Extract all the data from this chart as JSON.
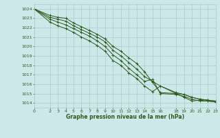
{
  "title": "Graphe pression niveau de la mer (hPa)",
  "bg_color": "#cce8e8",
  "grid_color": "#aacccc",
  "line_color": "#2d5a1b",
  "xlim": [
    0,
    23
  ],
  "ylim": [
    1013.5,
    1024.5
  ],
  "xtick_labels": [
    "0",
    "2",
    "3",
    "4",
    "5",
    "6",
    "7",
    "8",
    "9",
    "10",
    "11",
    "12",
    "13",
    "14",
    "15",
    "16",
    "18",
    "19",
    "20",
    "21",
    "22",
    "23"
  ],
  "xtick_pos": [
    0,
    2,
    3,
    4,
    5,
    6,
    7,
    8,
    9,
    10,
    11,
    12,
    13,
    14,
    15,
    16,
    18,
    19,
    20,
    21,
    22,
    23
  ],
  "yticks": [
    1014,
    1015,
    1016,
    1017,
    1018,
    1019,
    1020,
    1021,
    1022,
    1023,
    1024
  ],
  "series": [
    {
      "x": [
        0,
        2,
        3,
        4,
        5,
        6,
        7,
        8,
        9,
        10,
        11,
        12,
        13,
        14,
        15,
        16,
        18,
        19,
        20,
        21,
        22,
        23
      ],
      "y": [
        1024.0,
        1023.3,
        1023.1,
        1023.0,
        1022.5,
        1022.1,
        1021.7,
        1021.3,
        1020.8,
        1020.0,
        1019.5,
        1018.8,
        1018.2,
        1017.3,
        1016.2,
        1015.1,
        1015.0,
        1014.9,
        1014.6,
        1014.4,
        1014.3,
        1014.2
      ]
    },
    {
      "x": [
        0,
        2,
        3,
        4,
        5,
        6,
        7,
        8,
        9,
        10,
        11,
        12,
        13,
        14,
        15,
        16,
        18,
        19,
        20,
        21,
        22,
        23
      ],
      "y": [
        1024.0,
        1023.1,
        1022.9,
        1022.7,
        1022.2,
        1021.8,
        1021.4,
        1021.0,
        1020.5,
        1019.6,
        1019.0,
        1018.3,
        1017.6,
        1016.8,
        1016.3,
        1015.8,
        1015.1,
        1014.9,
        1014.6,
        1014.4,
        1014.3,
        1014.2
      ]
    },
    {
      "x": [
        0,
        2,
        3,
        4,
        5,
        6,
        7,
        8,
        9,
        10,
        11,
        12,
        13,
        14,
        15,
        16,
        18,
        19,
        20,
        21,
        22,
        23
      ],
      "y": [
        1024.0,
        1022.9,
        1022.6,
        1022.3,
        1021.9,
        1021.5,
        1021.1,
        1020.6,
        1020.0,
        1019.1,
        1018.5,
        1017.7,
        1017.0,
        1016.3,
        1016.5,
        1015.0,
        1014.9,
        1014.7,
        1014.4,
        1014.2,
        1014.2,
        1014.1
      ]
    },
    {
      "x": [
        0,
        2,
        3,
        4,
        5,
        6,
        7,
        8,
        9,
        10,
        11,
        12,
        13,
        14,
        15,
        16,
        18,
        19,
        20,
        21,
        22,
        23
      ],
      "y": [
        1024.0,
        1022.6,
        1022.2,
        1021.9,
        1021.5,
        1021.0,
        1020.6,
        1020.1,
        1019.5,
        1018.5,
        1018.0,
        1017.2,
        1016.6,
        1015.8,
        1015.2,
        1015.8,
        1015.0,
        1014.6,
        1014.2,
        1014.3,
        1014.2,
        1014.1
      ]
    }
  ]
}
